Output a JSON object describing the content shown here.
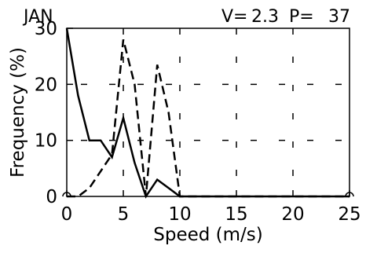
{
  "header": {
    "month": "JAN",
    "v_label": "V=",
    "v_value": "2.3",
    "p_label": "P=",
    "p_value": "37"
  },
  "chart_data": {
    "type": "line",
    "title": "",
    "xlabel": "Speed (m/s)",
    "ylabel": "Frequency (%)",
    "xlim": [
      0,
      25
    ],
    "ylim": [
      0,
      30
    ],
    "xticks": [
      0,
      5,
      10,
      15,
      20,
      25
    ],
    "yticks": [
      0,
      10,
      20,
      30
    ],
    "grid": "dashed vertical marks at x = 5, 10, 15, 20; dashed horizontal marks at y = 10, 20",
    "legend": "none",
    "series": [
      {
        "style": "solid",
        "color": "#000000",
        "x": [
          0,
          1,
          2,
          3,
          4,
          5,
          6,
          7,
          8,
          9,
          10,
          11,
          12,
          13,
          14,
          15,
          16,
          17,
          18,
          19,
          20,
          21,
          22,
          23,
          24,
          25
        ],
        "y": [
          30,
          18,
          10,
          10,
          7,
          14,
          6,
          0,
          3,
          1.5,
          0,
          0,
          0,
          0,
          0,
          0,
          0,
          0,
          0,
          0,
          0,
          0,
          0,
          0,
          0,
          0
        ]
      },
      {
        "style": "dashed",
        "color": "#000000",
        "x": [
          0,
          1,
          2,
          3,
          4,
          5,
          6,
          7,
          8,
          9,
          10,
          11,
          12,
          13,
          14,
          15,
          16,
          17,
          18,
          19,
          20,
          21,
          22,
          23,
          24,
          25
        ],
        "y": [
          0,
          0,
          1.5,
          4.5,
          7.5,
          28,
          20,
          0,
          23.5,
          15,
          0,
          0,
          0,
          0,
          0,
          0,
          0,
          0,
          0,
          0,
          0,
          0,
          0,
          0,
          0,
          0
        ]
      }
    ]
  }
}
